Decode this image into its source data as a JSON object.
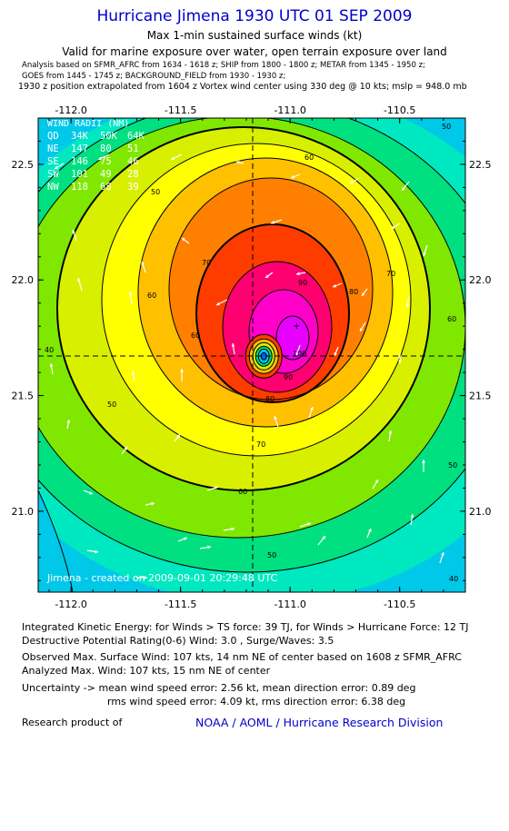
{
  "header": {
    "title": "Hurricane Jimena 1930 UTC 01 SEP 2009",
    "subtitle1": "Max 1-min sustained surface winds (kt)",
    "subtitle2": "Valid for marine exposure over water, open terrain exposure over land",
    "analysis_line1": "Analysis based on  SFMR_AFRC from 1634 - 1618 z;  SHIP from 1800 - 1800 z;  METAR from 1345 - 1950 z;",
    "analysis_line2": "GOES from 1445 - 1745 z;  BACKGROUND_FIELD from 1930 - 1930 z;",
    "extrapolation": "1930 z position extrapolated from 1604 z Vortex wind center using 330 deg @ 10 kts; mslp = 948.0 mb"
  },
  "chart_data": {
    "type": "contour",
    "title": "Hurricane Jimena 1930 UTC 01 SEP 2009",
    "variable": "Max 1-min sustained surface winds (kt)",
    "x_ticks": [
      "-112.0",
      "-111.5",
      "-111.0",
      "-110.5"
    ],
    "y_ticks": [
      "21.0",
      "21.5",
      "22.0",
      "22.5"
    ],
    "xlim": [
      -112.15,
      -110.2
    ],
    "ylim": [
      20.65,
      22.7
    ],
    "center": {
      "lon": -111.12,
      "lat": 21.67
    },
    "max_wind_kt": 107,
    "contour_levels": [
      40,
      50,
      60,
      70,
      80,
      90,
      100
    ],
    "contour_labels": [
      "40",
      "50",
      "60",
      "70",
      "80",
      "90",
      "100"
    ],
    "wind_radii": {
      "title": "WIND RADII (NM)",
      "header": [
        "QD",
        "34K",
        "50K",
        "64K"
      ],
      "rows": [
        [
          "NE",
          "147",
          "80",
          "51"
        ],
        [
          "SE",
          "146",
          "75",
          "46"
        ],
        [
          "SW",
          "101",
          "49",
          "28"
        ],
        [
          "NW",
          "118",
          "68",
          "39"
        ]
      ]
    },
    "credit": "Jimena - created on 2009-09-01 20:29:48 UTC"
  },
  "colors": {
    "title_blue": "#0000cc",
    "fills": [
      "#00c8e8",
      "#00e8c0",
      "#00e080",
      "#80e800",
      "#d8f000",
      "#ffff00",
      "#ffc000",
      "#ff8000",
      "#ff3c00",
      "#ff0070",
      "#ff00c8",
      "#e800ff"
    ]
  },
  "info": {
    "ike": "Integrated Kinetic Energy:  for Winds > TS force: 39 TJ,  for Winds > Hurricane Force: 12 TJ",
    "dpr": "Destructive Potential Rating(0-6)   Wind: 3.0 , Surge/Waves: 3.5",
    "obs_max": "Observed Max. Surface Wind: 107 kts, 14 nm NE of center based on 1608 z SFMR_AFRC",
    "ana_max": "Analyzed Max. Wind: 107 kts, 15 nm NE of center",
    "unc1": "Uncertainty -> mean wind speed error: 2.56 kt,   mean direction error: 0.89 deg",
    "unc2": "rms wind speed error: 4.09 kt,   rms direction error: 6.38 deg",
    "research": "Research product of",
    "noaa": "NOAA / AOML / Hurricane Research Division"
  }
}
